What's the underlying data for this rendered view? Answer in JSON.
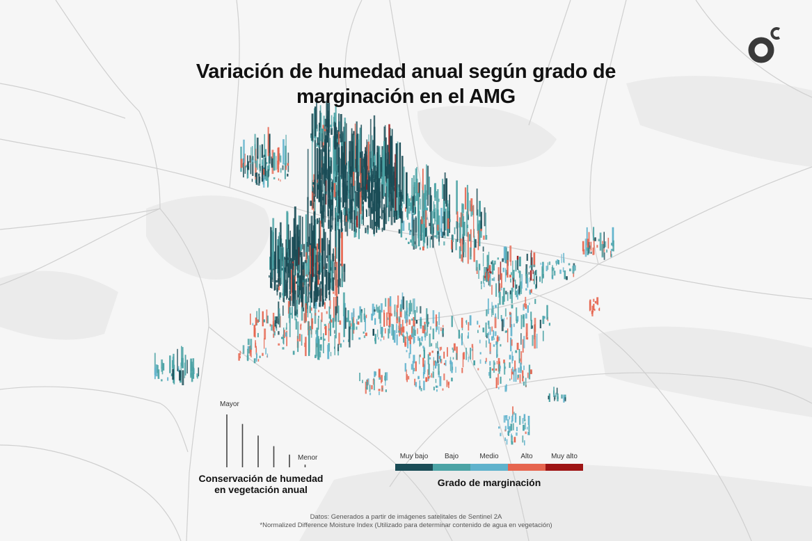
{
  "title": {
    "line1": "Variación de humedad anual según grado de",
    "line2": "marginación en el AMG"
  },
  "logo": {
    "name": "oc-logo",
    "color": "#3a3a3a"
  },
  "height_legend": {
    "top_label": "Mayor",
    "bottom_label": "Menor",
    "title_line1": "Conservación de humedad",
    "title_line2": "en vegetación anual",
    "bar_levels": [
      1.0,
      0.82,
      0.6,
      0.4,
      0.24,
      0.05
    ]
  },
  "color_legend": {
    "title": "Grado de marginación",
    "categories": [
      {
        "label": "Muy bajo",
        "color": "#1b4d57"
      },
      {
        "label": "Bajo",
        "color": "#4ba3a5"
      },
      {
        "label": "Medio",
        "color": "#5fb2cc"
      },
      {
        "label": "Alto",
        "color": "#e6654f"
      },
      {
        "label": "Muy alto",
        "color": "#9e1515"
      }
    ]
  },
  "credits": {
    "line1": "Datos: Generados a partir de imágenes satelitales de Sentinel 2A",
    "line2": "*Normalized Difference Moisture Index (Utilizado para determinar contenido de agua en vegetación)"
  }
}
